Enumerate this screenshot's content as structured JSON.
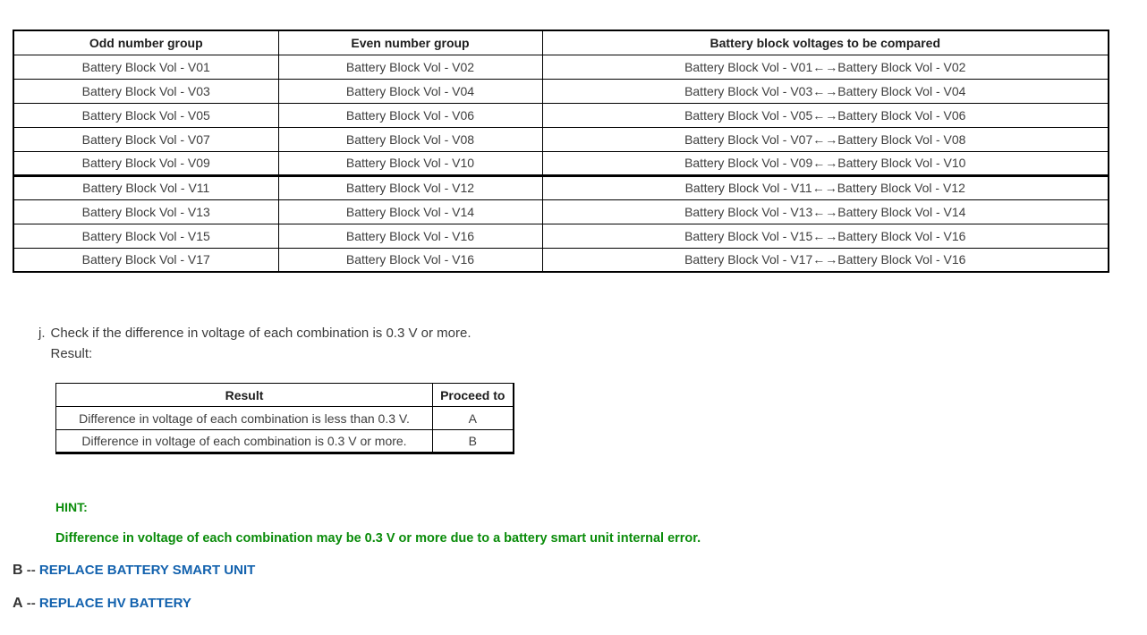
{
  "colors": {
    "hint_green": "#0a8c0a",
    "link_blue": "#1362ae",
    "border": "#000000",
    "body_text": "#3d3d3d"
  },
  "comparison_table": {
    "headers": [
      "Odd number group",
      "Even number group",
      "Battery block voltages to be compared"
    ],
    "rows": [
      [
        "Battery Block Vol - V01",
        "Battery Block Vol - V02",
        "Battery Block Vol - V01←→Battery Block Vol - V02"
      ],
      [
        "Battery Block Vol - V03",
        "Battery Block Vol - V04",
        "Battery Block Vol - V03←→Battery Block Vol - V04"
      ],
      [
        "Battery Block Vol - V05",
        "Battery Block Vol - V06",
        "Battery Block Vol - V05←→Battery Block Vol - V06"
      ],
      [
        "Battery Block Vol - V07",
        "Battery Block Vol - V08",
        "Battery Block Vol - V07←→Battery Block Vol - V08"
      ],
      [
        "Battery Block Vol - V09",
        "Battery Block Vol - V10",
        "Battery Block Vol - V09←→Battery Block Vol - V10"
      ],
      [
        "Battery Block Vol - V11",
        "Battery Block Vol - V12",
        "Battery Block Vol - V11←→Battery Block Vol - V12"
      ],
      [
        "Battery Block Vol - V13",
        "Battery Block Vol - V14",
        "Battery Block Vol - V13←→Battery Block Vol - V14"
      ],
      [
        "Battery Block Vol - V15",
        "Battery Block Vol - V16",
        "Battery Block Vol - V15←→Battery Block Vol - V16"
      ],
      [
        "Battery Block Vol - V17",
        "Battery Block Vol - V16",
        "Battery Block Vol - V17←→Battery Block Vol - V16"
      ]
    ]
  },
  "step": {
    "marker": "j.",
    "text": "Check if the difference in voltage of each combination is 0.3 V or more.",
    "result_label": "Result:"
  },
  "result_table": {
    "headers": [
      "Result",
      "Proceed to"
    ],
    "rows": [
      [
        "Difference in voltage of each combination is less than 0.3 V.",
        "A"
      ],
      [
        "Difference in voltage of each combination is 0.3 V or more.",
        "B"
      ]
    ]
  },
  "hint": {
    "label": "HINT:",
    "text": "Difference in voltage of each combination may be 0.3 V or more due to a battery smart unit internal error."
  },
  "outcomes": [
    {
      "prefix": "B",
      "separator": "--",
      "label": "REPLACE BATTERY SMART UNIT"
    },
    {
      "prefix": "A",
      "separator": "--",
      "label": "REPLACE HV BATTERY"
    }
  ]
}
